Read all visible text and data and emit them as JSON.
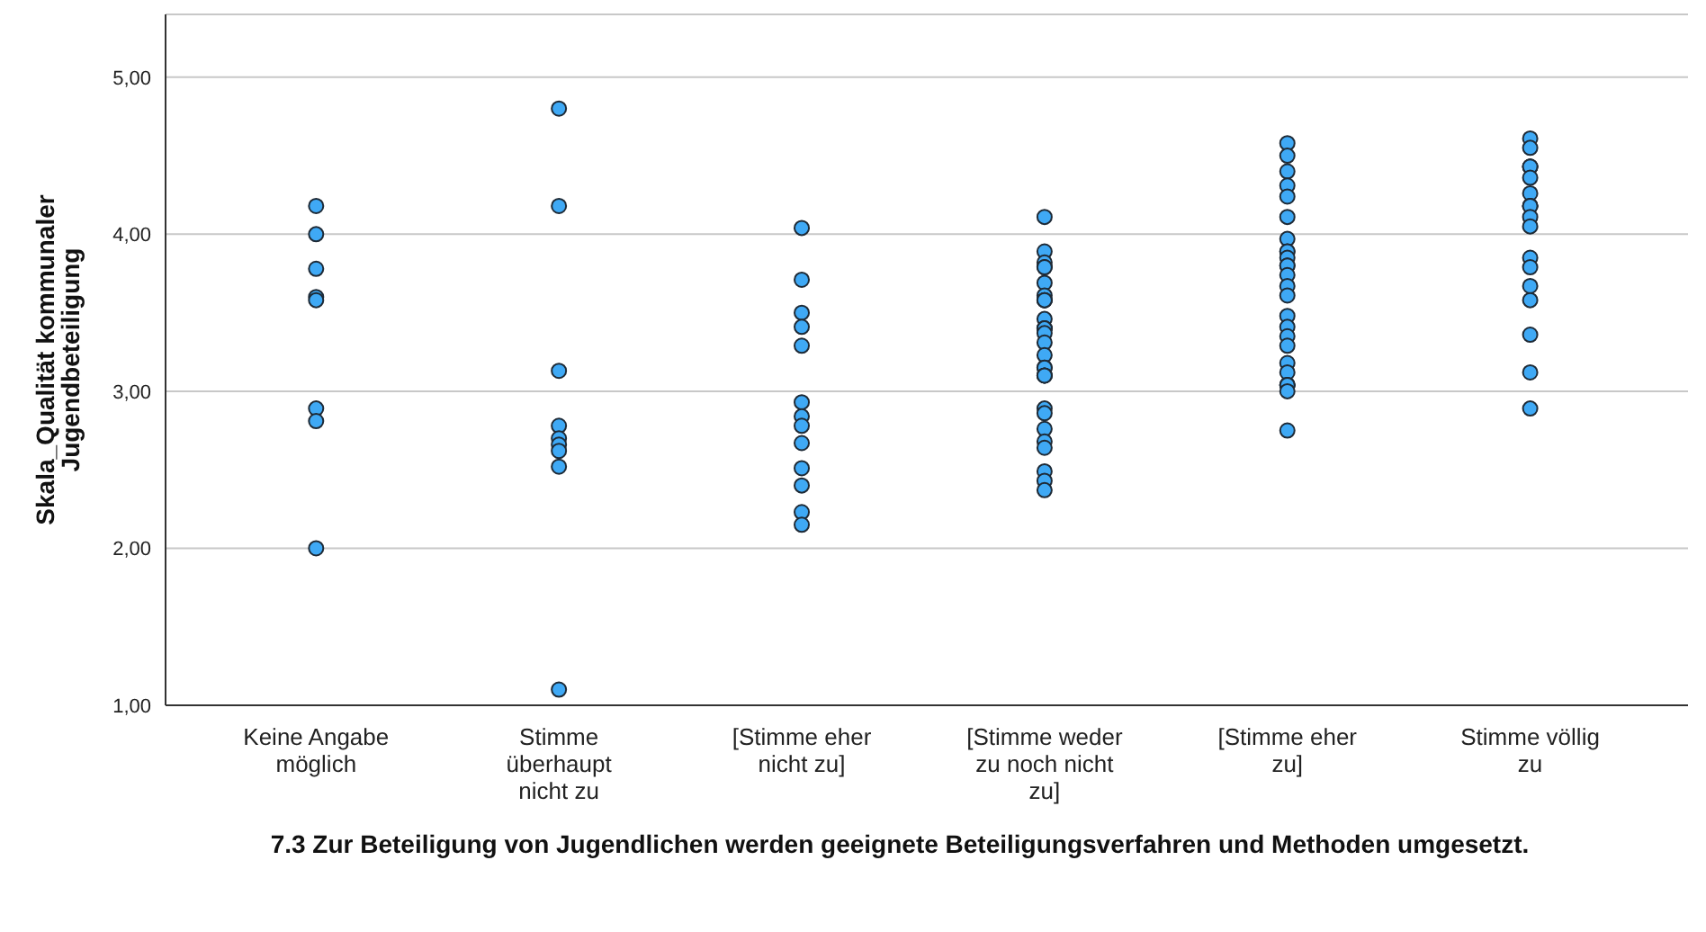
{
  "chart_data": {
    "type": "scatter",
    "xlabel": "7.3 Zur Beteiligung von Jugendlichen werden geeignete Beteiligungsverfahren und Methoden umgesetzt.",
    "ylabel": "Skala_Qualität kommunaler Jugendbeteiligung",
    "categories": [
      "Keine Angabe möglich",
      "Stimme überhaupt nicht zu",
      "[Stimme eher nicht zu]",
      "[Stimme weder zu noch nicht zu]",
      "[Stimme eher zu]",
      "Stimme völlig zu"
    ],
    "ylim": [
      1,
      5.4
    ],
    "yticks": [
      {
        "value": 1,
        "label": "1,00"
      },
      {
        "value": 2,
        "label": "2,00"
      },
      {
        "value": 3,
        "label": "3,00"
      },
      {
        "value": 4,
        "label": "4,00"
      },
      {
        "value": 5,
        "label": "5,00"
      }
    ],
    "grid": "y",
    "marker": "circle",
    "series": [
      {
        "color": "#3fa9f5",
        "x": [
          "Keine Angabe möglich",
          "Keine Angabe möglich",
          "Keine Angabe möglich",
          "Keine Angabe möglich",
          "Keine Angabe möglich",
          "Keine Angabe möglich",
          "Keine Angabe möglich",
          "Keine Angabe möglich",
          "Stimme überhaupt nicht zu",
          "Stimme überhaupt nicht zu",
          "Stimme überhaupt nicht zu",
          "Stimme überhaupt nicht zu",
          "Stimme überhaupt nicht zu",
          "Stimme überhaupt nicht zu",
          "Stimme überhaupt nicht zu",
          "Stimme überhaupt nicht zu",
          "Stimme überhaupt nicht zu",
          "[Stimme eher nicht zu]",
          "[Stimme eher nicht zu]",
          "[Stimme eher nicht zu]",
          "[Stimme eher nicht zu]",
          "[Stimme eher nicht zu]",
          "[Stimme eher nicht zu]",
          "[Stimme eher nicht zu]",
          "[Stimme eher nicht zu]",
          "[Stimme eher nicht zu]",
          "[Stimme eher nicht zu]",
          "[Stimme eher nicht zu]",
          "[Stimme eher nicht zu]",
          "[Stimme eher nicht zu]",
          "[Stimme weder zu noch nicht zu]",
          "[Stimme weder zu noch nicht zu]",
          "[Stimme weder zu noch nicht zu]",
          "[Stimme weder zu noch nicht zu]",
          "[Stimme weder zu noch nicht zu]",
          "[Stimme weder zu noch nicht zu]",
          "[Stimme weder zu noch nicht zu]",
          "[Stimme weder zu noch nicht zu]",
          "[Stimme weder zu noch nicht zu]",
          "[Stimme weder zu noch nicht zu]",
          "[Stimme weder zu noch nicht zu]",
          "[Stimme weder zu noch nicht zu]",
          "[Stimme weder zu noch nicht zu]",
          "[Stimme weder zu noch nicht zu]",
          "[Stimme weder zu noch nicht zu]",
          "[Stimme weder zu noch nicht zu]",
          "[Stimme weder zu noch nicht zu]",
          "[Stimme weder zu noch nicht zu]",
          "[Stimme weder zu noch nicht zu]",
          "[Stimme weder zu noch nicht zu]",
          "[Stimme weder zu noch nicht zu]",
          "[Stimme weder zu noch nicht zu]",
          "[Stimme weder zu noch nicht zu]",
          "[Stimme weder zu noch nicht zu]",
          "[Stimme weder zu noch nicht zu]",
          "[Stimme weder zu noch nicht zu]",
          "[Stimme weder zu noch nicht zu]",
          "[Stimme weder zu noch nicht zu]",
          "[Stimme weder zu noch nicht zu]",
          "[Stimme weder zu noch nicht zu]",
          "[Stimme eher zu]",
          "[Stimme eher zu]",
          "[Stimme eher zu]",
          "[Stimme eher zu]",
          "[Stimme eher zu]",
          "[Stimme eher zu]",
          "[Stimme eher zu]",
          "[Stimme eher zu]",
          "[Stimme eher zu]",
          "[Stimme eher zu]",
          "[Stimme eher zu]",
          "[Stimme eher zu]",
          "[Stimme eher zu]",
          "[Stimme eher zu]",
          "[Stimme eher zu]",
          "[Stimme eher zu]",
          "[Stimme eher zu]",
          "[Stimme eher zu]",
          "[Stimme eher zu]",
          "[Stimme eher zu]",
          "[Stimme eher zu]",
          "[Stimme eher zu]",
          "[Stimme eher zu]",
          "[Stimme eher zu]",
          "[Stimme eher zu]",
          "[Stimme eher zu]",
          "Stimme völlig zu",
          "Stimme völlig zu",
          "Stimme völlig zu",
          "Stimme völlig zu",
          "Stimme völlig zu",
          "Stimme völlig zu",
          "Stimme völlig zu",
          "Stimme völlig zu",
          "Stimme völlig zu",
          "Stimme völlig zu",
          "Stimme völlig zu",
          "Stimme völlig zu",
          "Stimme völlig zu",
          "Stimme völlig zu",
          "Stimme völlig zu",
          "Stimme völlig zu",
          "Stimme völlig zu",
          "Stimme völlig zu",
          "Stimme völlig zu"
        ],
        "values": [
          4.18,
          4.0,
          3.78,
          3.6,
          3.58,
          2.89,
          2.81,
          2.0,
          4.8,
          4.18,
          3.13,
          2.78,
          2.7,
          2.66,
          2.62,
          2.52,
          1.1,
          4.04,
          3.71,
          3.5,
          3.41,
          3.29,
          2.93,
          2.84,
          2.78,
          2.67,
          2.51,
          2.4,
          2.23,
          2.15,
          4.11,
          3.89,
          3.82,
          3.79,
          3.79,
          3.69,
          3.61,
          3.58,
          3.58,
          3.58,
          3.46,
          3.4,
          3.4,
          3.4,
          3.37,
          3.31,
          3.23,
          3.15,
          3.15,
          3.1,
          3.1,
          3.1,
          2.89,
          2.86,
          2.76,
          2.68,
          2.64,
          2.49,
          2.43,
          2.37,
          4.58,
          4.5,
          4.4,
          4.31,
          4.24,
          4.11,
          3.97,
          3.89,
          3.89,
          3.85,
          3.8,
          3.8,
          3.74,
          3.67,
          3.61,
          3.48,
          3.41,
          3.35,
          3.29,
          3.18,
          3.12,
          3.04,
          3.04,
          3.04,
          3.0,
          2.75,
          4.61,
          4.55,
          4.43,
          4.43,
          4.43,
          4.36,
          4.26,
          4.18,
          4.18,
          4.18,
          4.11,
          4.05,
          3.85,
          3.79,
          3.67,
          3.58,
          3.36,
          3.12,
          2.89
        ]
      }
    ]
  }
}
